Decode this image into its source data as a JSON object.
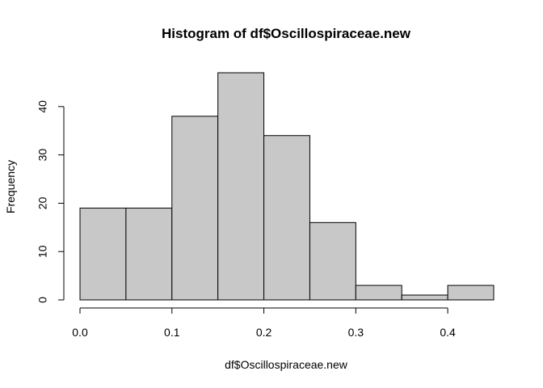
{
  "chart_data": {
    "type": "bar",
    "subtype": "histogram",
    "title": "Histogram of df$Oscillospiraceae.new",
    "xlabel": "df$Oscillospiraceae.new",
    "ylabel": "Frequency",
    "bins": [
      {
        "x0": 0.0,
        "x1": 0.05,
        "count": 19
      },
      {
        "x0": 0.05,
        "x1": 0.1,
        "count": 19
      },
      {
        "x0": 0.1,
        "x1": 0.15,
        "count": 38
      },
      {
        "x0": 0.15,
        "x1": 0.2,
        "count": 47
      },
      {
        "x0": 0.2,
        "x1": 0.25,
        "count": 34
      },
      {
        "x0": 0.25,
        "x1": 0.3,
        "count": 16
      },
      {
        "x0": 0.3,
        "x1": 0.35,
        "count": 3
      },
      {
        "x0": 0.35,
        "x1": 0.4,
        "count": 1
      },
      {
        "x0": 0.4,
        "x1": 0.45,
        "count": 3
      }
    ],
    "x_ticks": [
      {
        "value": 0.0,
        "label": "0.0"
      },
      {
        "value": 0.1,
        "label": "0.1"
      },
      {
        "value": 0.2,
        "label": "0.2"
      },
      {
        "value": 0.3,
        "label": "0.3"
      },
      {
        "value": 0.4,
        "label": "0.4"
      }
    ],
    "y_ticks": [
      {
        "value": 0,
        "label": "0"
      },
      {
        "value": 10,
        "label": "10"
      },
      {
        "value": 20,
        "label": "20"
      },
      {
        "value": 30,
        "label": "30"
      },
      {
        "value": 40,
        "label": "40"
      }
    ],
    "xlim": [
      0.0,
      0.45
    ],
    "ylim": [
      0,
      47
    ],
    "grid": false,
    "legend": "none",
    "colors": {
      "bar_fill": "#c8c8c8",
      "bar_stroke": "#000000",
      "axis": "#000000"
    }
  }
}
